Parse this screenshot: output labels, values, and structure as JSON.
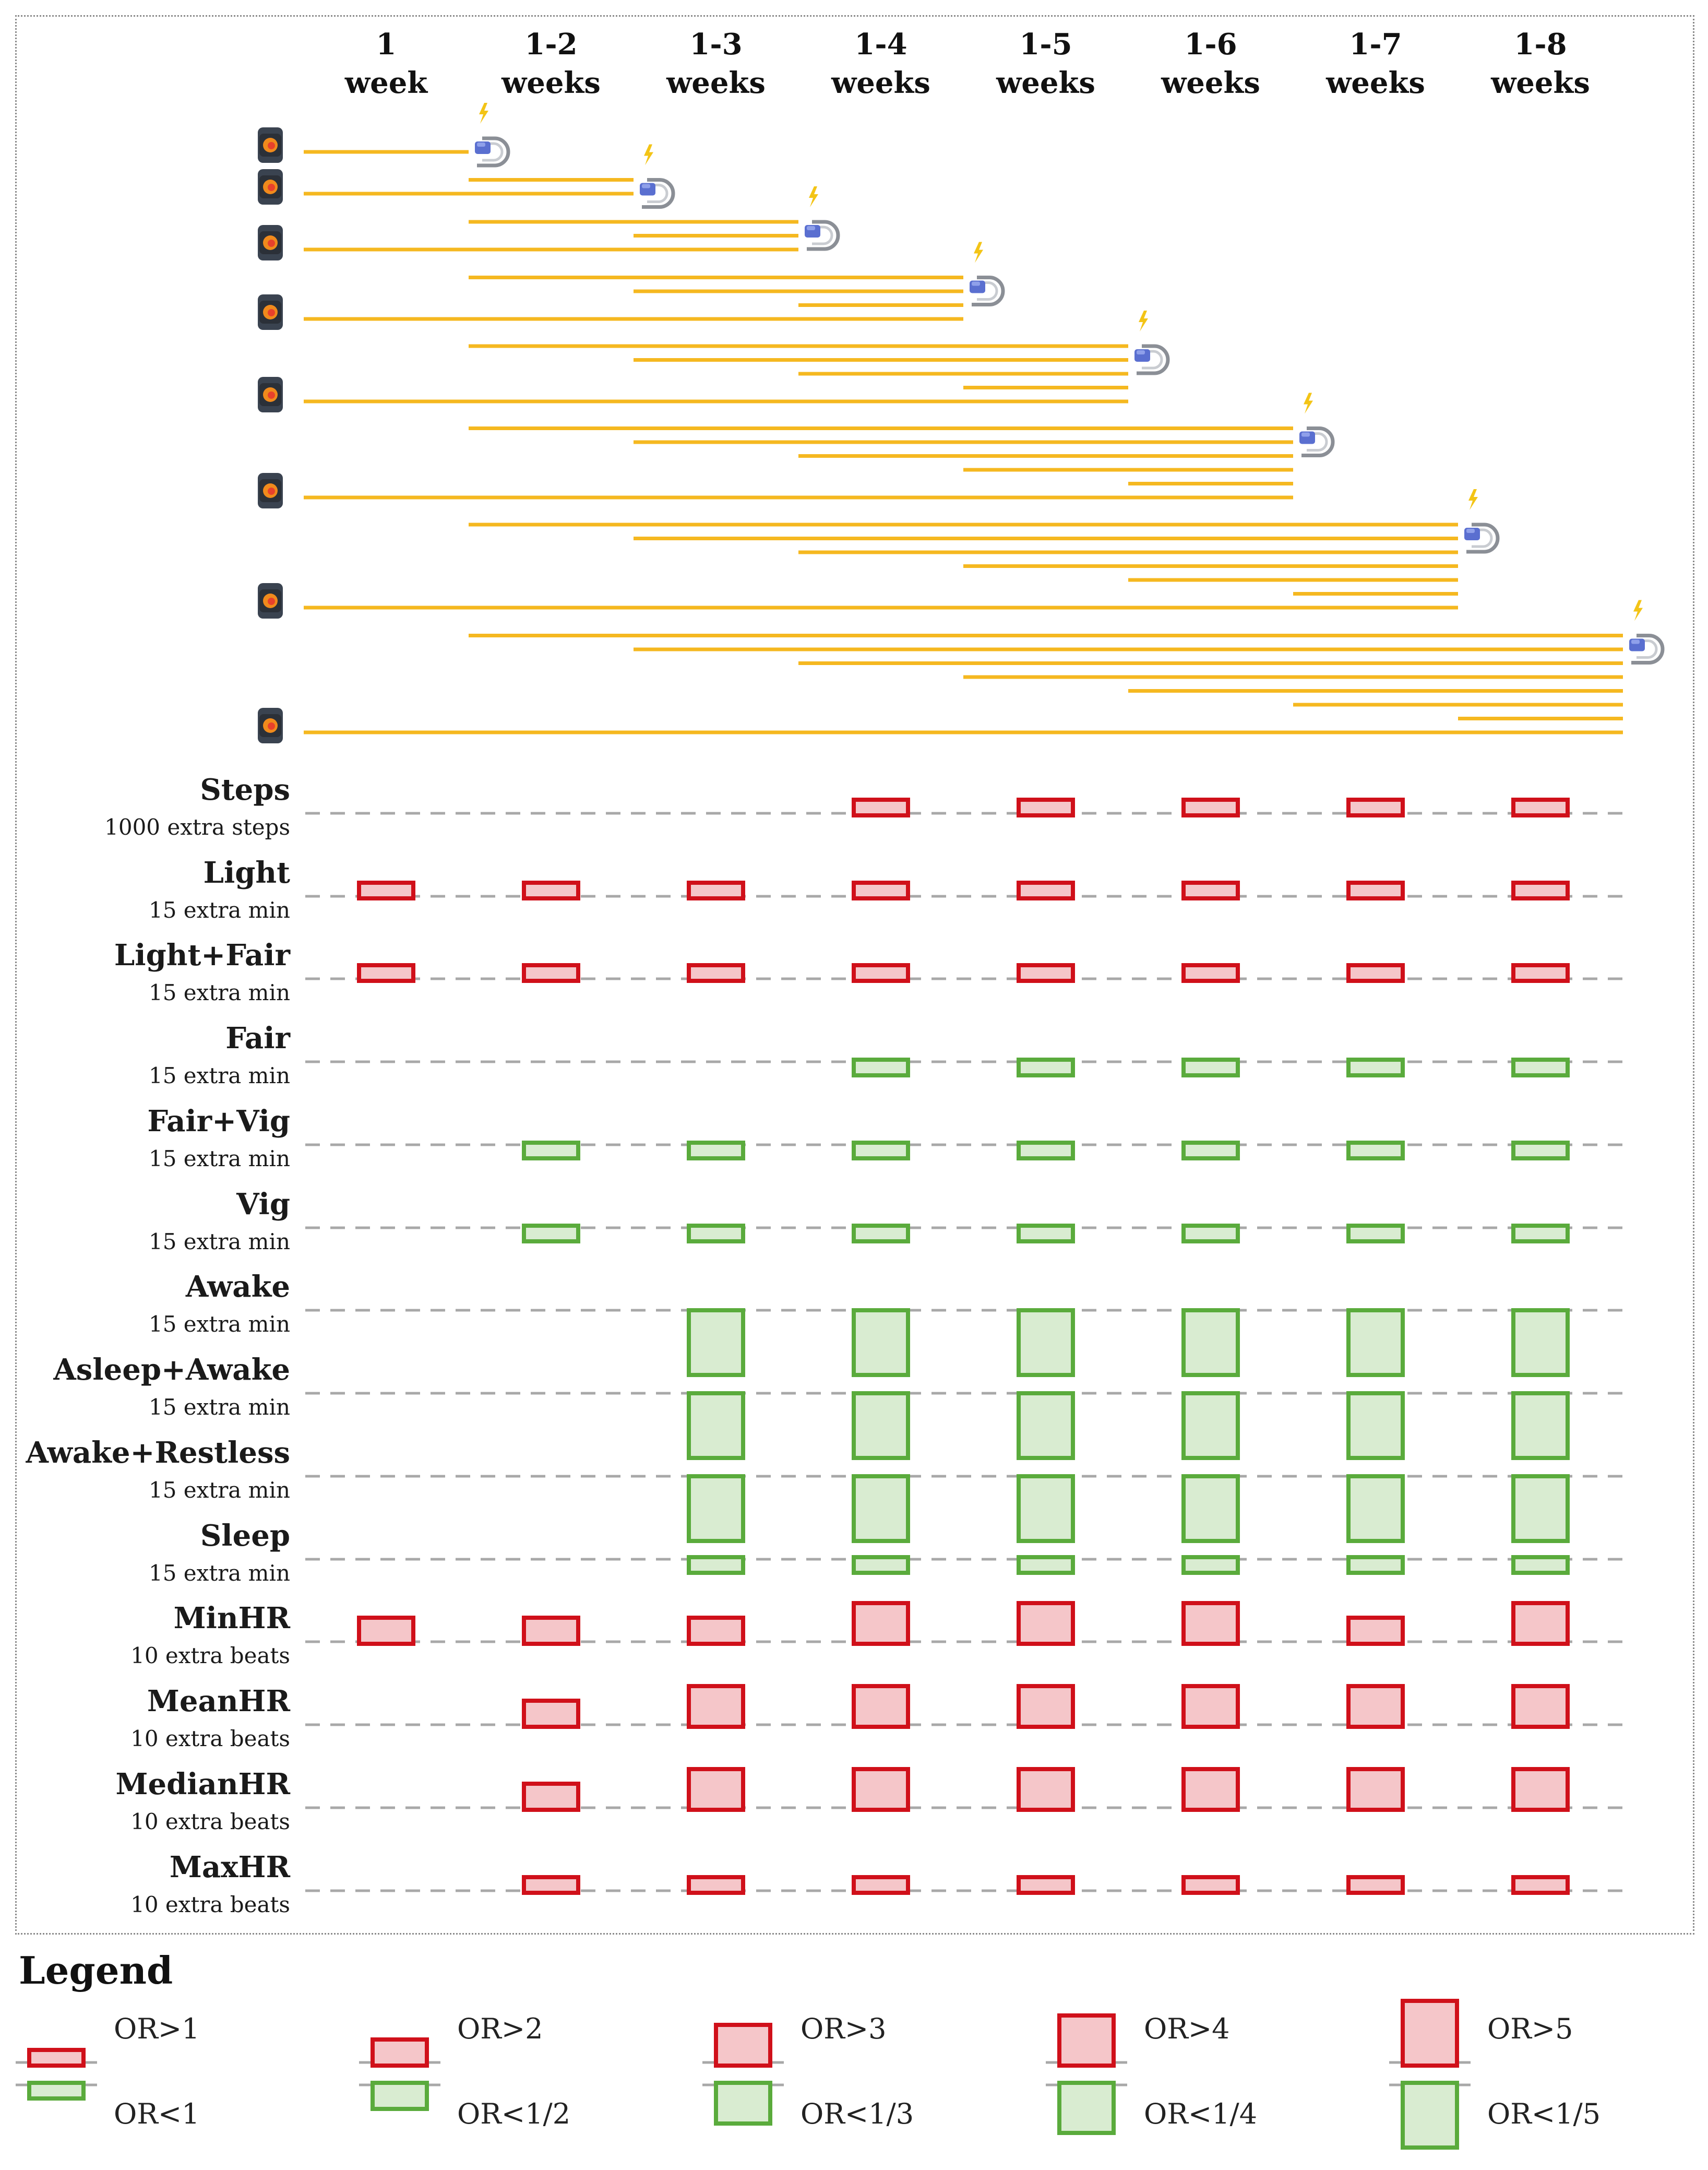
{
  "columns": [
    {
      "line1": "1",
      "line2": "week"
    },
    {
      "line1": "1-2",
      "line2": "weeks"
    },
    {
      "line1": "1-3",
      "line2": "weeks"
    },
    {
      "line1": "1-4",
      "line2": "weeks"
    },
    {
      "line1": "1-5",
      "line2": "weeks"
    },
    {
      "line1": "1-6",
      "line2": "weeks"
    },
    {
      "line1": "1-7",
      "line2": "weeks"
    },
    {
      "line1": "1-8",
      "line2": "weeks"
    }
  ],
  "timeline": {
    "description_icons": [
      "smartwatch-icon",
      "charger-icon",
      "lightning-icon"
    ],
    "rows": 8
  },
  "rows": [
    {
      "name": "Steps",
      "unit": "1000 extra steps",
      "cells": [
        null,
        null,
        null,
        "OR>1",
        "OR>1",
        "OR>1",
        "OR>1",
        "OR>1"
      ]
    },
    {
      "name": "Light",
      "unit": "15 extra min",
      "cells": [
        "OR>1",
        "OR>1",
        "OR>1",
        "OR>1",
        "OR>1",
        "OR>1",
        "OR>1",
        "OR>1"
      ]
    },
    {
      "name": "Light+Fair",
      "unit": "15 extra min",
      "cells": [
        "OR>1",
        "OR>1",
        "OR>1",
        "OR>1",
        "OR>1",
        "OR>1",
        "OR>1",
        "OR>1"
      ]
    },
    {
      "name": "Fair",
      "unit": "15 extra min",
      "cells": [
        null,
        null,
        null,
        "OR<1",
        "OR<1",
        "OR<1",
        "OR<1",
        "OR<1"
      ]
    },
    {
      "name": "Fair+Vig",
      "unit": "15 extra min",
      "cells": [
        null,
        "OR<1",
        "OR<1",
        "OR<1",
        "OR<1",
        "OR<1",
        "OR<1",
        "OR<1"
      ]
    },
    {
      "name": "Vig",
      "unit": "15 extra min",
      "cells": [
        null,
        "OR<1",
        "OR<1",
        "OR<1",
        "OR<1",
        "OR<1",
        "OR<1",
        "OR<1"
      ]
    },
    {
      "name": "Awake",
      "unit": "15 extra min",
      "cells": [
        null,
        null,
        "OR<1/5",
        "OR<1/5",
        "OR<1/5",
        "OR<1/5",
        "OR<1/5",
        "OR<1/5"
      ]
    },
    {
      "name": "Asleep+Awake",
      "unit": "15 extra min",
      "cells": [
        null,
        null,
        "OR<1/5",
        "OR<1/5",
        "OR<1/5",
        "OR<1/5",
        "OR<1/5",
        "OR<1/5"
      ]
    },
    {
      "name": "Awake+Restless",
      "unit": "15 extra min",
      "cells": [
        null,
        null,
        "OR<1/5",
        "OR<1/5",
        "OR<1/5",
        "OR<1/5",
        "OR<1/5",
        "OR<1/5"
      ]
    },
    {
      "name": "Sleep",
      "unit": "15 extra min",
      "cells": [
        null,
        null,
        "OR<1",
        "OR<1",
        "OR<1",
        "OR<1",
        "OR<1",
        "OR<1"
      ]
    },
    {
      "name": "MinHR",
      "unit": "10 extra beats",
      "cells": [
        "OR>2",
        "OR>2",
        "OR>2",
        "OR>3",
        "OR>3",
        "OR>3",
        "OR>2",
        "OR>3"
      ]
    },
    {
      "name": "MeanHR",
      "unit": "10 extra beats",
      "cells": [
        null,
        "OR>2",
        "OR>3",
        "OR>3",
        "OR>3",
        "OR>3",
        "OR>3",
        "OR>3"
      ]
    },
    {
      "name": "MedianHR",
      "unit": "10 extra beats",
      "cells": [
        null,
        "OR>2",
        "OR>3",
        "OR>3",
        "OR>3",
        "OR>3",
        "OR>3",
        "OR>3"
      ]
    },
    {
      "name": "MaxHR",
      "unit": "10 extra beats",
      "cells": [
        null,
        "OR>1",
        "OR>1",
        "OR>1",
        "OR>1",
        "OR>1",
        "OR>1",
        "OR>1"
      ]
    }
  ],
  "legend": {
    "title": "Legend",
    "items": [
      {
        "label": "OR>1",
        "kind": "pos",
        "level": 1
      },
      {
        "label": "OR>2",
        "kind": "pos",
        "level": 2
      },
      {
        "label": "OR>3",
        "kind": "pos",
        "level": 3
      },
      {
        "label": "OR>4",
        "kind": "pos",
        "level": 4
      },
      {
        "label": "OR>5",
        "kind": "pos",
        "level": 5
      },
      {
        "label": "OR<1",
        "kind": "neg",
        "level": 1
      },
      {
        "label": "OR<1/2",
        "kind": "neg",
        "level": 2
      },
      {
        "label": "OR<1/3",
        "kind": "neg",
        "level": 3
      },
      {
        "label": "OR<1/4",
        "kind": "neg",
        "level": 4
      },
      {
        "label": "OR<1/5",
        "kind": "neg",
        "level": 5
      }
    ]
  },
  "colors": {
    "positive_stroke": "#d0101a",
    "positive_fill": "#f5c6c9",
    "negative_stroke": "#5aab3c",
    "negative_fill": "#d9ecd1",
    "timeline": "#f5b820",
    "dash": "#a8a8a8"
  }
}
